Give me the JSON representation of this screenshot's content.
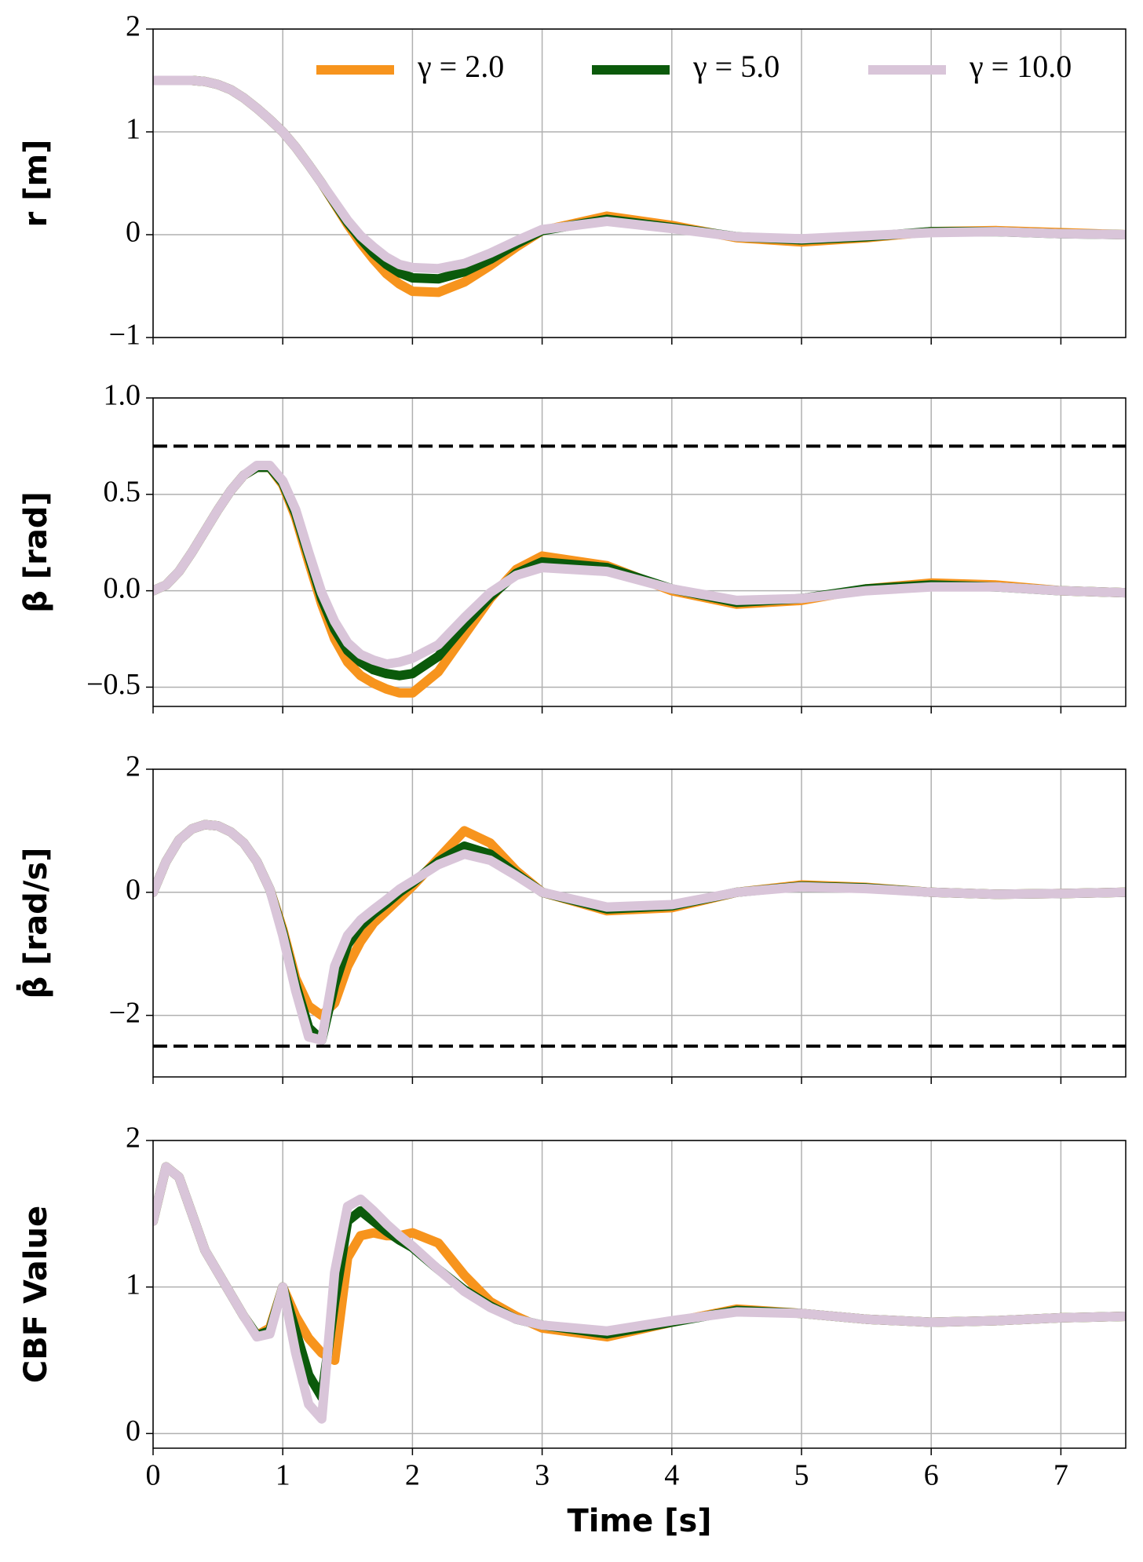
{
  "chart_data": [
    {
      "type": "line",
      "ylabel": "r [m]",
      "legend": "upper right",
      "grid": true,
      "xlim": [
        0,
        7.5
      ],
      "ylim": [
        -1,
        2
      ],
      "yticks": [
        {
          "value": -1,
          "label": "−1"
        },
        0,
        1,
        2
      ],
      "x": [
        0,
        0.1,
        0.2,
        0.3,
        0.4,
        0.5,
        0.6,
        0.7,
        0.8,
        0.9,
        1.0,
        1.1,
        1.2,
        1.3,
        1.4,
        1.5,
        1.6,
        1.7,
        1.8,
        1.9,
        2.0,
        2.2,
        2.4,
        2.6,
        2.8,
        3.0,
        3.5,
        4.0,
        4.5,
        5.0,
        5.5,
        6.0,
        6.5,
        7.0,
        7.5
      ],
      "series": [
        {
          "name": "γ = 2.0",
          "color": "#f7941d",
          "values": [
            1.5,
            1.5,
            1.5,
            1.5,
            1.49,
            1.46,
            1.41,
            1.33,
            1.23,
            1.12,
            1.0,
            0.85,
            0.68,
            0.5,
            0.3,
            0.1,
            -0.08,
            -0.24,
            -0.38,
            -0.48,
            -0.55,
            -0.56,
            -0.46,
            -0.3,
            -0.12,
            0.04,
            0.18,
            0.09,
            -0.03,
            -0.07,
            -0.03,
            0.03,
            0.04,
            0.02,
            0.0
          ]
        },
        {
          "name": "γ = 5.0",
          "color": "#0b5a0b",
          "values": [
            1.5,
            1.5,
            1.5,
            1.5,
            1.49,
            1.46,
            1.41,
            1.33,
            1.23,
            1.12,
            1.0,
            0.85,
            0.68,
            0.5,
            0.31,
            0.12,
            -0.04,
            -0.18,
            -0.29,
            -0.37,
            -0.42,
            -0.43,
            -0.36,
            -0.24,
            -0.09,
            0.04,
            0.15,
            0.07,
            -0.02,
            -0.05,
            -0.02,
            0.03,
            0.03,
            0.01,
            0.0
          ]
        },
        {
          "name": "γ = 10.0",
          "color": "#d9c5d9",
          "values": [
            1.5,
            1.5,
            1.5,
            1.5,
            1.49,
            1.46,
            1.41,
            1.33,
            1.23,
            1.12,
            1.0,
            0.85,
            0.68,
            0.5,
            0.32,
            0.14,
            -0.01,
            -0.12,
            -0.22,
            -0.29,
            -0.32,
            -0.33,
            -0.28,
            -0.18,
            -0.06,
            0.05,
            0.13,
            0.06,
            -0.02,
            -0.04,
            -0.01,
            0.02,
            0.03,
            0.01,
            0.0
          ]
        }
      ]
    },
    {
      "type": "line",
      "ylabel": "β [rad]",
      "grid": true,
      "threshold": 0.75,
      "xlim": [
        0,
        7.5
      ],
      "ylim": [
        -0.6,
        1.0
      ],
      "yticks": [
        {
          "value": -0.5,
          "label": "−0.5"
        },
        {
          "value": 0,
          "label": "0.0"
        },
        0.5,
        {
          "value": 1,
          "label": "1.0"
        }
      ],
      "x": [
        0,
        0.1,
        0.2,
        0.3,
        0.4,
        0.5,
        0.6,
        0.7,
        0.8,
        0.9,
        1.0,
        1.1,
        1.2,
        1.3,
        1.4,
        1.5,
        1.6,
        1.7,
        1.8,
        1.9,
        2.0,
        2.2,
        2.4,
        2.6,
        2.8,
        3.0,
        3.5,
        4.0,
        4.5,
        5.0,
        5.5,
        6.0,
        6.5,
        7.0,
        7.5
      ],
      "series": [
        {
          "color": "#f7941d",
          "values": [
            0,
            0.03,
            0.1,
            0.2,
            0.31,
            0.42,
            0.52,
            0.6,
            0.64,
            0.64,
            0.55,
            0.38,
            0.15,
            -0.07,
            -0.25,
            -0.37,
            -0.44,
            -0.48,
            -0.51,
            -0.53,
            -0.53,
            -0.42,
            -0.23,
            -0.04,
            0.11,
            0.18,
            0.13,
            0.0,
            -0.07,
            -0.05,
            0.01,
            0.04,
            0.03,
            0.0,
            -0.01
          ]
        },
        {
          "color": "#0b5a0b",
          "values": [
            0,
            0.03,
            0.1,
            0.2,
            0.31,
            0.42,
            0.52,
            0.6,
            0.64,
            0.64,
            0.56,
            0.4,
            0.18,
            -0.04,
            -0.2,
            -0.31,
            -0.37,
            -0.41,
            -0.43,
            -0.44,
            -0.43,
            -0.34,
            -0.18,
            -0.03,
            0.09,
            0.15,
            0.12,
            0.01,
            -0.06,
            -0.04,
            0.01,
            0.03,
            0.02,
            0.0,
            -0.01
          ]
        },
        {
          "color": "#d9c5d9",
          "values": [
            0,
            0.03,
            0.1,
            0.2,
            0.31,
            0.42,
            0.52,
            0.6,
            0.65,
            0.65,
            0.57,
            0.42,
            0.2,
            -0.01,
            -0.16,
            -0.27,
            -0.33,
            -0.36,
            -0.38,
            -0.37,
            -0.35,
            -0.28,
            -0.14,
            -0.01,
            0.08,
            0.12,
            0.1,
            0.01,
            -0.05,
            -0.04,
            0.0,
            0.02,
            0.02,
            0.0,
            -0.01
          ]
        }
      ]
    },
    {
      "type": "line",
      "ylabel": "β̇ [rad/s]",
      "grid": true,
      "threshold": -2.5,
      "xlim": [
        0,
        7.5
      ],
      "ylim": [
        -3,
        2
      ],
      "yticks": [
        {
          "value": -2,
          "label": "−2"
        },
        0,
        2
      ],
      "x": [
        0,
        0.1,
        0.2,
        0.3,
        0.4,
        0.5,
        0.6,
        0.7,
        0.8,
        0.9,
        1.0,
        1.1,
        1.2,
        1.3,
        1.4,
        1.5,
        1.6,
        1.7,
        1.8,
        1.9,
        2.0,
        2.2,
        2.4,
        2.6,
        2.8,
        3.0,
        3.5,
        4.0,
        4.5,
        5.0,
        5.5,
        6.0,
        6.5,
        7.0,
        7.5
      ],
      "series": [
        {
          "color": "#f7941d",
          "values": [
            0,
            0.5,
            0.85,
            1.03,
            1.1,
            1.08,
            0.98,
            0.8,
            0.5,
            0.05,
            -0.6,
            -1.4,
            -1.85,
            -2.0,
            -1.8,
            -1.2,
            -0.8,
            -0.5,
            -0.3,
            -0.1,
            0.1,
            0.55,
            1.0,
            0.8,
            0.35,
            0.0,
            -0.3,
            -0.25,
            0.0,
            0.12,
            0.08,
            0.0,
            -0.03,
            -0.02,
            0.0
          ]
        },
        {
          "color": "#0b5a0b",
          "values": [
            0,
            0.5,
            0.85,
            1.03,
            1.1,
            1.08,
            0.98,
            0.8,
            0.5,
            0.05,
            -0.65,
            -1.5,
            -2.2,
            -2.4,
            -1.5,
            -0.85,
            -0.55,
            -0.35,
            -0.18,
            0.0,
            0.15,
            0.5,
            0.75,
            0.62,
            0.3,
            0.0,
            -0.27,
            -0.22,
            0.0,
            0.1,
            0.07,
            0.0,
            -0.03,
            -0.02,
            0.0
          ]
        },
        {
          "color": "#d9c5d9",
          "values": [
            0,
            0.5,
            0.85,
            1.03,
            1.1,
            1.08,
            0.98,
            0.8,
            0.5,
            0.05,
            -0.7,
            -1.6,
            -2.35,
            -2.4,
            -1.2,
            -0.7,
            -0.45,
            -0.28,
            -0.12,
            0.05,
            0.18,
            0.45,
            0.62,
            0.52,
            0.27,
            0.0,
            -0.24,
            -0.2,
            0.0,
            0.09,
            0.06,
            0.0,
            -0.03,
            -0.02,
            0.0
          ]
        }
      ]
    },
    {
      "type": "line",
      "ylabel": "CBF Value",
      "xlabel": "Time [s]",
      "grid": true,
      "xlim": [
        0,
        7.5
      ],
      "xticks": [
        0,
        1,
        2,
        3,
        4,
        5,
        6,
        7
      ],
      "ylim": [
        -0.1,
        2
      ],
      "yticks": [
        0,
        1,
        2
      ],
      "x": [
        0,
        0.1,
        0.2,
        0.3,
        0.4,
        0.5,
        0.6,
        0.7,
        0.8,
        0.9,
        1.0,
        1.1,
        1.2,
        1.3,
        1.4,
        1.5,
        1.6,
        1.7,
        1.8,
        1.9,
        2.0,
        2.2,
        2.4,
        2.6,
        2.8,
        3.0,
        3.5,
        4.0,
        4.5,
        5.0,
        5.5,
        6.0,
        6.5,
        7.0,
        7.5
      ],
      "series": [
        {
          "color": "#f7941d",
          "values": [
            1.45,
            1.82,
            1.75,
            1.5,
            1.25,
            1.1,
            0.95,
            0.8,
            0.67,
            0.72,
            1.0,
            0.8,
            0.65,
            0.55,
            0.5,
            1.2,
            1.35,
            1.37,
            1.35,
            1.35,
            1.37,
            1.3,
            1.08,
            0.9,
            0.8,
            0.72,
            0.66,
            0.76,
            0.85,
            0.82,
            0.78,
            0.76,
            0.77,
            0.79,
            0.8
          ]
        },
        {
          "color": "#0b5a0b",
          "values": [
            1.45,
            1.82,
            1.75,
            1.5,
            1.25,
            1.1,
            0.95,
            0.8,
            0.67,
            0.7,
            1.0,
            0.7,
            0.4,
            0.25,
            0.9,
            1.45,
            1.52,
            1.45,
            1.38,
            1.32,
            1.27,
            1.12,
            0.98,
            0.87,
            0.78,
            0.74,
            0.68,
            0.76,
            0.84,
            0.82,
            0.78,
            0.76,
            0.77,
            0.79,
            0.8
          ]
        },
        {
          "color": "#d9c5d9",
          "values": [
            1.45,
            1.82,
            1.75,
            1.5,
            1.25,
            1.1,
            0.95,
            0.8,
            0.66,
            0.68,
            1.0,
            0.55,
            0.2,
            0.1,
            1.1,
            1.55,
            1.6,
            1.52,
            1.43,
            1.35,
            1.28,
            1.12,
            0.97,
            0.86,
            0.78,
            0.74,
            0.7,
            0.77,
            0.83,
            0.82,
            0.78,
            0.76,
            0.77,
            0.79,
            0.8
          ]
        }
      ]
    }
  ]
}
